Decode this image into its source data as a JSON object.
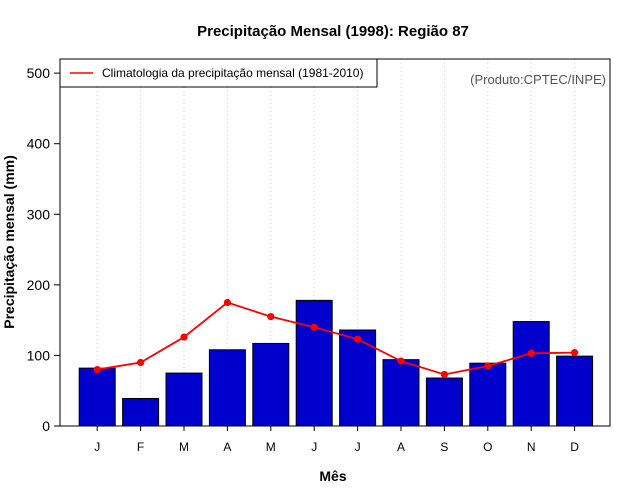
{
  "chart_data": {
    "type": "bar",
    "title": "Precipitação Mensal (1998): Região 87",
    "xlabel": "Mês",
    "ylabel": "Precipitação mensal (mm)",
    "ylim": [
      0,
      520
    ],
    "yticks": [
      0,
      100,
      200,
      300,
      400,
      500
    ],
    "categories": [
      "J",
      "F",
      "M",
      "A",
      "M",
      "J",
      "J",
      "A",
      "S",
      "O",
      "N",
      "D"
    ],
    "series": [
      {
        "name": "Precipitação mensal (1998)",
        "type": "bar",
        "color": "#0000cd",
        "values": [
          82,
          39,
          75,
          108,
          117,
          178,
          136,
          94,
          68,
          89,
          148,
          99
        ]
      },
      {
        "name": "Climatologia da precipitação mensal (1981-2010)",
        "type": "line",
        "color": "#ff0000",
        "values": [
          80,
          90,
          126,
          175,
          155,
          140,
          123,
          92,
          73,
          85,
          103,
          104
        ]
      }
    ],
    "legend": {
      "entries": [
        "Climatologia da precipitação mensal (1981-2010)"
      ],
      "position": "top-left"
    },
    "annotation": "(Produto:CPTEC/INPE)",
    "grid": "vertical-dotted"
  }
}
